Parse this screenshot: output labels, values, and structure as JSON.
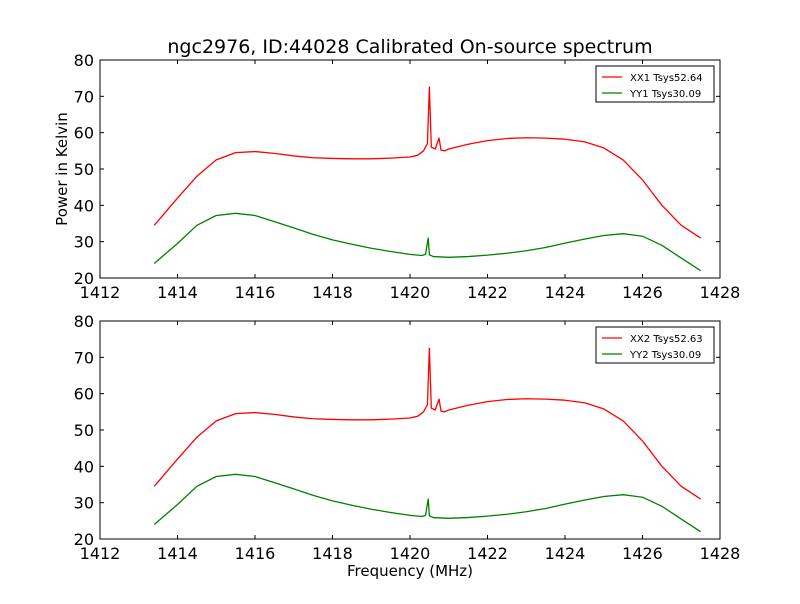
{
  "title": "ngc2976, ID:44028 Calibrated On-source spectrum",
  "xlabel": "Frequency (MHz)",
  "ylabel": "Power in Kelvin",
  "colors": {
    "red": "#ff0000",
    "green": "#008000"
  },
  "chart_data": [
    {
      "type": "line",
      "xlim": [
        1412,
        1428
      ],
      "ylim": [
        20,
        80
      ],
      "xticks": [
        1412,
        1414,
        1416,
        1418,
        1420,
        1422,
        1424,
        1426,
        1428
      ],
      "yticks": [
        20,
        30,
        40,
        50,
        60,
        70,
        80
      ],
      "xlabel": "",
      "ylabel": "Power in Kelvin",
      "grid": false,
      "legend_position": "top-right",
      "series": [
        {
          "name": "XX1 Tsys52.64",
          "color": "#ff0000",
          "x": [
            1413.4,
            1414.0,
            1414.5,
            1415.0,
            1415.5,
            1416.0,
            1416.5,
            1417.0,
            1417.5,
            1418.0,
            1418.5,
            1419.0,
            1419.5,
            1420.0,
            1420.2,
            1420.35,
            1420.45,
            1420.5,
            1420.55,
            1420.65,
            1420.75,
            1420.8,
            1420.9,
            1421.0,
            1421.5,
            1422.0,
            1422.5,
            1423.0,
            1423.5,
            1424.0,
            1424.5,
            1425.0,
            1425.5,
            1426.0,
            1426.5,
            1427.0,
            1427.5
          ],
          "y": [
            34.5,
            42.0,
            48.0,
            52.5,
            54.5,
            54.8,
            54.3,
            53.6,
            53.1,
            52.9,
            52.8,
            52.8,
            53.0,
            53.3,
            53.8,
            55.0,
            57.0,
            72.5,
            56.0,
            55.5,
            58.5,
            55.2,
            55.0,
            55.5,
            56.8,
            57.8,
            58.4,
            58.6,
            58.5,
            58.2,
            57.5,
            55.8,
            52.5,
            47.0,
            40.0,
            34.5,
            31.0
          ]
        },
        {
          "name": "YY1 Tsys30.09",
          "color": "#008000",
          "x": [
            1413.4,
            1414.0,
            1414.5,
            1415.0,
            1415.5,
            1416.0,
            1416.5,
            1417.0,
            1417.5,
            1418.0,
            1418.5,
            1419.0,
            1419.5,
            1420.0,
            1420.3,
            1420.4,
            1420.47,
            1420.5,
            1420.6,
            1421.0,
            1421.5,
            1422.0,
            1422.5,
            1423.0,
            1423.5,
            1424.0,
            1424.5,
            1425.0,
            1425.5,
            1426.0,
            1426.5,
            1427.0,
            1427.5
          ],
          "y": [
            24.0,
            29.5,
            34.5,
            37.2,
            37.8,
            37.2,
            35.5,
            33.8,
            32.0,
            30.5,
            29.3,
            28.2,
            27.3,
            26.5,
            26.2,
            26.5,
            31.0,
            26.4,
            25.9,
            25.7,
            25.9,
            26.3,
            26.8,
            27.5,
            28.4,
            29.6,
            30.7,
            31.7,
            32.2,
            31.5,
            29.0,
            25.5,
            22.0
          ]
        }
      ]
    },
    {
      "type": "line",
      "xlim": [
        1412,
        1428
      ],
      "ylim": [
        20,
        80
      ],
      "xticks": [
        1412,
        1414,
        1416,
        1418,
        1420,
        1422,
        1424,
        1426,
        1428
      ],
      "yticks": [
        20,
        30,
        40,
        50,
        60,
        70,
        80
      ],
      "xlabel": "Frequency (MHz)",
      "ylabel": "",
      "grid": false,
      "legend_position": "top-right",
      "series": [
        {
          "name": "XX2 Tsys52.63",
          "color": "#ff0000",
          "x": [
            1413.4,
            1414.0,
            1414.5,
            1415.0,
            1415.5,
            1416.0,
            1416.5,
            1417.0,
            1417.5,
            1418.0,
            1418.5,
            1419.0,
            1419.5,
            1420.0,
            1420.2,
            1420.35,
            1420.45,
            1420.5,
            1420.55,
            1420.65,
            1420.75,
            1420.8,
            1420.9,
            1421.0,
            1421.5,
            1422.0,
            1422.5,
            1423.0,
            1423.5,
            1424.0,
            1424.5,
            1425.0,
            1425.5,
            1426.0,
            1426.5,
            1427.0,
            1427.5
          ],
          "y": [
            34.5,
            42.0,
            48.0,
            52.5,
            54.5,
            54.8,
            54.3,
            53.6,
            53.1,
            52.9,
            52.8,
            52.8,
            53.0,
            53.3,
            53.8,
            55.0,
            57.0,
            72.5,
            56.0,
            55.5,
            58.5,
            55.2,
            55.0,
            55.5,
            56.8,
            57.8,
            58.4,
            58.6,
            58.5,
            58.2,
            57.5,
            55.8,
            52.5,
            47.0,
            40.0,
            34.5,
            31.0
          ]
        },
        {
          "name": "YY2 Tsys30.09",
          "color": "#008000",
          "x": [
            1413.4,
            1414.0,
            1414.5,
            1415.0,
            1415.5,
            1416.0,
            1416.5,
            1417.0,
            1417.5,
            1418.0,
            1418.5,
            1419.0,
            1419.5,
            1420.0,
            1420.3,
            1420.4,
            1420.47,
            1420.5,
            1420.6,
            1421.0,
            1421.5,
            1422.0,
            1422.5,
            1423.0,
            1423.5,
            1424.0,
            1424.5,
            1425.0,
            1425.5,
            1426.0,
            1426.5,
            1427.0,
            1427.5
          ],
          "y": [
            24.0,
            29.5,
            34.5,
            37.2,
            37.8,
            37.2,
            35.5,
            33.8,
            32.0,
            30.5,
            29.3,
            28.2,
            27.3,
            26.5,
            26.2,
            26.5,
            31.0,
            26.4,
            25.9,
            25.7,
            25.9,
            26.3,
            26.8,
            27.5,
            28.4,
            29.6,
            30.7,
            31.7,
            32.2,
            31.5,
            29.0,
            25.5,
            22.0
          ]
        }
      ]
    }
  ]
}
